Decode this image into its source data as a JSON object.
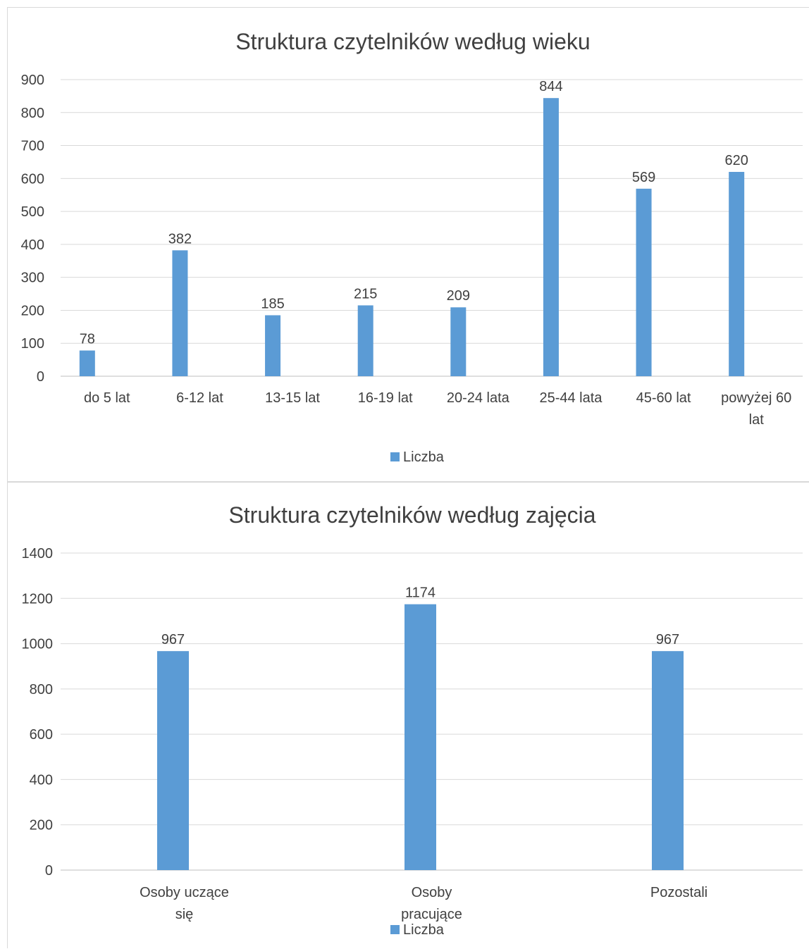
{
  "chart_data": [
    {
      "type": "bar",
      "title": "Struktura czytelników według wieku",
      "categories": [
        "do 5 lat",
        "6-12 lat",
        "13-15 lat",
        "16-19 lat",
        "20-24 lata",
        "25-44 lata",
        "45-60 lat",
        "powyżej 60 lat"
      ],
      "series": [
        {
          "name": "Liczba",
          "values": [
            78,
            382,
            185,
            215,
            209,
            844,
            569,
            620
          ]
        }
      ],
      "ylim": [
        0,
        900
      ],
      "yticks": [
        0,
        100,
        200,
        300,
        400,
        500,
        600,
        700,
        800,
        900
      ],
      "grid": true,
      "legend": "bottom",
      "data_labels": true,
      "color": "#5b9bd5"
    },
    {
      "type": "bar",
      "title": "Struktura czytelników według zajęcia",
      "categories": [
        "Osoby uczące się",
        "Osoby pracujące",
        "Pozostali"
      ],
      "series": [
        {
          "name": "Liczba",
          "values": [
            967,
            1174,
            967
          ]
        }
      ],
      "ylim": [
        0,
        1400
      ],
      "yticks": [
        0,
        200,
        400,
        600,
        800,
        1000,
        1200,
        1400
      ],
      "grid": true,
      "legend": "bottom",
      "data_labels": true,
      "color": "#5b9bd5"
    }
  ]
}
